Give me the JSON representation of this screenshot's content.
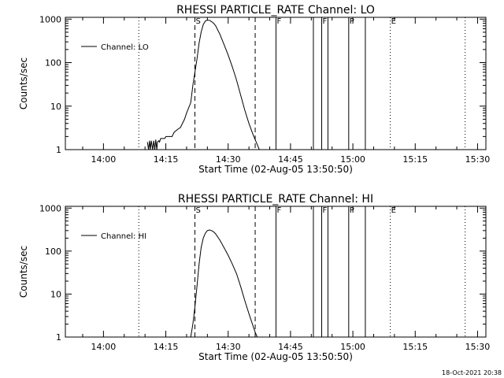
{
  "footer_timestamp": "18-Oct-2021 20:38",
  "chart_data": [
    {
      "type": "line",
      "title": "RHESSI PARTICLE_RATE Channel: LO",
      "xlabel": "Start Time (02-Aug-05 13:50:50)",
      "ylabel": "Counts/sec",
      "yscale": "log",
      "xlim": [
        "13:50:50",
        "15:32:00"
      ],
      "ylim": [
        1,
        1100
      ],
      "xticks": [
        "14:00",
        "14:15",
        "14:30",
        "14:45",
        "15:00",
        "15:15",
        "15:30"
      ],
      "yticks": [
        "1",
        "10",
        "100",
        "1000"
      ],
      "legend": {
        "placement": "top-left",
        "entries": [
          "Channel: LO"
        ]
      },
      "series": [
        {
          "name": "Channel: LO",
          "color": "#000000",
          "x": [
            "14:10:35",
            "14:10:50",
            "14:11:05",
            "14:11:15",
            "14:11:30",
            "14:11:50",
            "14:12:05",
            "14:12:20",
            "14:12:35",
            "14:12:50",
            "14:13:00",
            "14:13:20",
            "14:13:30",
            "14:13:45",
            "14:14:00",
            "14:14:45",
            "14:15:00",
            "14:16:30",
            "14:17:00",
            "14:18:00",
            "14:18:30",
            "14:19:30",
            "14:20:00",
            "14:21:00",
            "14:21:30",
            "14:22:00",
            "14:22:30",
            "14:23:00",
            "14:23:30",
            "14:24:00",
            "14:24:30",
            "14:25:00",
            "14:25:30",
            "14:26:00",
            "14:26:30",
            "14:27:00",
            "14:28:00",
            "14:29:00",
            "14:30:00",
            "14:31:00",
            "14:32:00",
            "14:33:00",
            "14:34:00",
            "14:35:00",
            "14:36:00",
            "14:37:00",
            "14:37:30"
          ],
          "y": [
            1.5,
            1,
            1.6,
            1,
            1.6,
            1,
            1.6,
            1,
            1.7,
            1,
            1.5,
            1.6,
            1.5,
            1.8,
            1.8,
            1.8,
            2,
            2,
            2.5,
            3,
            3.2,
            5,
            7,
            12,
            30,
            60,
            120,
            280,
            500,
            750,
            900,
            950,
            940,
            880,
            800,
            700,
            450,
            260,
            150,
            80,
            40,
            18,
            8,
            4,
            2.2,
            1.3,
            1
          ]
        }
      ],
      "vertical_markers": [
        {
          "time": "14:08:30",
          "style": "dotted",
          "label": ""
        },
        {
          "time": "14:22:00",
          "style": "dashed",
          "label": "S"
        },
        {
          "time": "14:36:30",
          "style": "dashed",
          "label": ""
        },
        {
          "time": "14:41:30",
          "style": "solid",
          "label": "F"
        },
        {
          "time": "14:50:30",
          "style": "solid",
          "label": ""
        },
        {
          "time": "14:52:30",
          "style": "solid",
          "label": "F"
        },
        {
          "time": "14:54:00",
          "style": "solid",
          "label": ""
        },
        {
          "time": "14:59:00",
          "style": "solid",
          "label": "P"
        },
        {
          "time": "15:03:00",
          "style": "solid",
          "label": ""
        },
        {
          "time": "15:09:00",
          "style": "dotted",
          "label": "E"
        },
        {
          "time": "15:27:00",
          "style": "dotted",
          "label": ""
        }
      ]
    },
    {
      "type": "line",
      "title": "RHESSI PARTICLE_RATE Channel: HI",
      "xlabel": "Start Time (02-Aug-05 13:50:50)",
      "ylabel": "Counts/sec",
      "yscale": "log",
      "xlim": [
        "13:50:50",
        "15:32:00"
      ],
      "ylim": [
        1,
        1100
      ],
      "xticks": [
        "14:00",
        "14:15",
        "14:30",
        "14:45",
        "15:00",
        "15:15",
        "15:30"
      ],
      "yticks": [
        "1",
        "10",
        "100",
        "1000"
      ],
      "legend": {
        "placement": "top-left",
        "entries": [
          "Channel: HI"
        ]
      },
      "series": [
        {
          "name": "Channel: HI",
          "color": "#000000",
          "x": [
            "14:21:00",
            "14:21:30",
            "14:22:00",
            "14:22:30",
            "14:23:00",
            "14:23:30",
            "14:24:00",
            "14:24:30",
            "14:25:00",
            "14:25:30",
            "14:26:00",
            "14:26:30",
            "14:27:00",
            "14:28:00",
            "14:29:00",
            "14:30:00",
            "14:31:00",
            "14:32:00",
            "14:33:00",
            "14:34:00",
            "14:35:00",
            "14:36:00",
            "14:36:30",
            "14:37:00"
          ],
          "y": [
            1,
            2,
            5,
            15,
            50,
            120,
            200,
            260,
            300,
            310,
            300,
            280,
            250,
            180,
            120,
            80,
            50,
            30,
            15,
            7,
            3.5,
            1.8,
            1.3,
            1
          ]
        }
      ],
      "vertical_markers": [
        {
          "time": "14:08:30",
          "style": "dotted",
          "label": ""
        },
        {
          "time": "14:22:00",
          "style": "dashed",
          "label": "S"
        },
        {
          "time": "14:36:30",
          "style": "dashed",
          "label": ""
        },
        {
          "time": "14:41:30",
          "style": "solid",
          "label": "F"
        },
        {
          "time": "14:50:30",
          "style": "solid",
          "label": ""
        },
        {
          "time": "14:52:30",
          "style": "solid",
          "label": "F"
        },
        {
          "time": "14:54:00",
          "style": "solid",
          "label": ""
        },
        {
          "time": "14:59:00",
          "style": "solid",
          "label": "P"
        },
        {
          "time": "15:03:00",
          "style": "solid",
          "label": ""
        },
        {
          "time": "15:09:00",
          "style": "dotted",
          "label": "E"
        },
        {
          "time": "15:27:00",
          "style": "dotted",
          "label": ""
        }
      ]
    }
  ]
}
